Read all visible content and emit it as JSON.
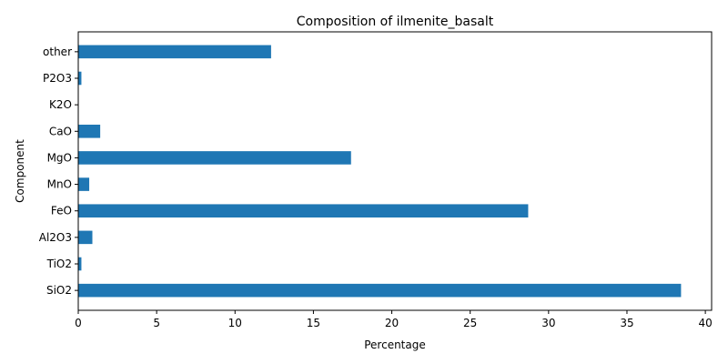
{
  "chart_data": {
    "type": "bar",
    "orientation": "horizontal",
    "title": "Composition of ilmenite_basalt",
    "xlabel": "Percentage",
    "ylabel": "Component",
    "categories": [
      "SiO2",
      "TiO2",
      "Al2O3",
      "FeO",
      "MnO",
      "MgO",
      "CaO",
      "K2O",
      "P2O3",
      "other"
    ],
    "values": [
      38.45,
      0.2,
      0.9,
      28.7,
      0.7,
      17.4,
      1.4,
      0.01,
      0.2,
      12.3
    ],
    "xlim": [
      0,
      40.4
    ],
    "xticks": [
      0,
      5,
      10,
      15,
      20,
      25,
      30,
      35,
      40
    ],
    "grid": false,
    "legend": "none",
    "bar_color": "#1f77b4"
  }
}
